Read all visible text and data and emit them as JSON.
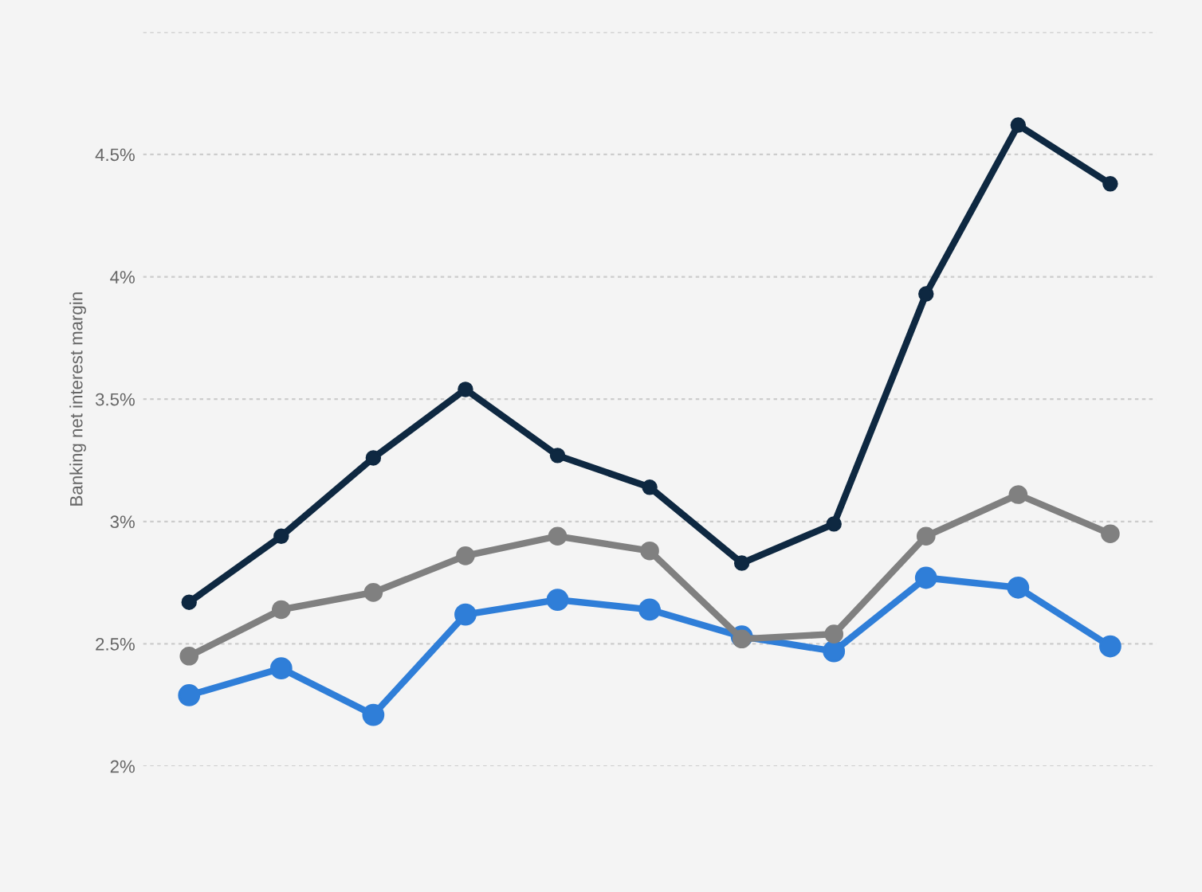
{
  "chart_data": {
    "type": "line",
    "ylabel": "Banking net interest margin",
    "categories": [
      null,
      null,
      null,
      null,
      null,
      null,
      null,
      null,
      null,
      null,
      null
    ],
    "series": [
      {
        "color": "#0e2841",
        "values": [
          2.67,
          2.94,
          3.26,
          3.54,
          3.27,
          3.14,
          2.83,
          2.99,
          3.93,
          4.62,
          4.38
        ]
      },
      {
        "color": "#808080",
        "values": [
          2.45,
          2.64,
          2.71,
          2.86,
          2.94,
          2.88,
          2.52,
          2.54,
          2.94,
          3.11,
          2.95
        ]
      },
      {
        "color": "#2f7ed8",
        "values": [
          2.29,
          2.4,
          2.21,
          2.62,
          2.68,
          2.64,
          2.53,
          2.47,
          2.77,
          2.73,
          2.49
        ]
      }
    ],
    "ylim": [
      2,
      5
    ],
    "yticks": [
      {
        "value": 2,
        "label": "2%"
      },
      {
        "value": 2.5,
        "label": "2.5%"
      },
      {
        "value": 3,
        "label": "3%"
      },
      {
        "value": 3.5,
        "label": "3.5%"
      },
      {
        "value": 4,
        "label": "4%"
      },
      {
        "value": 4.5,
        "label": "4.5%"
      },
      {
        "value": 5,
        "label": null
      }
    ],
    "grid": "y",
    "marker": "circle",
    "line_style": "solid",
    "tick_labels": "y"
  }
}
